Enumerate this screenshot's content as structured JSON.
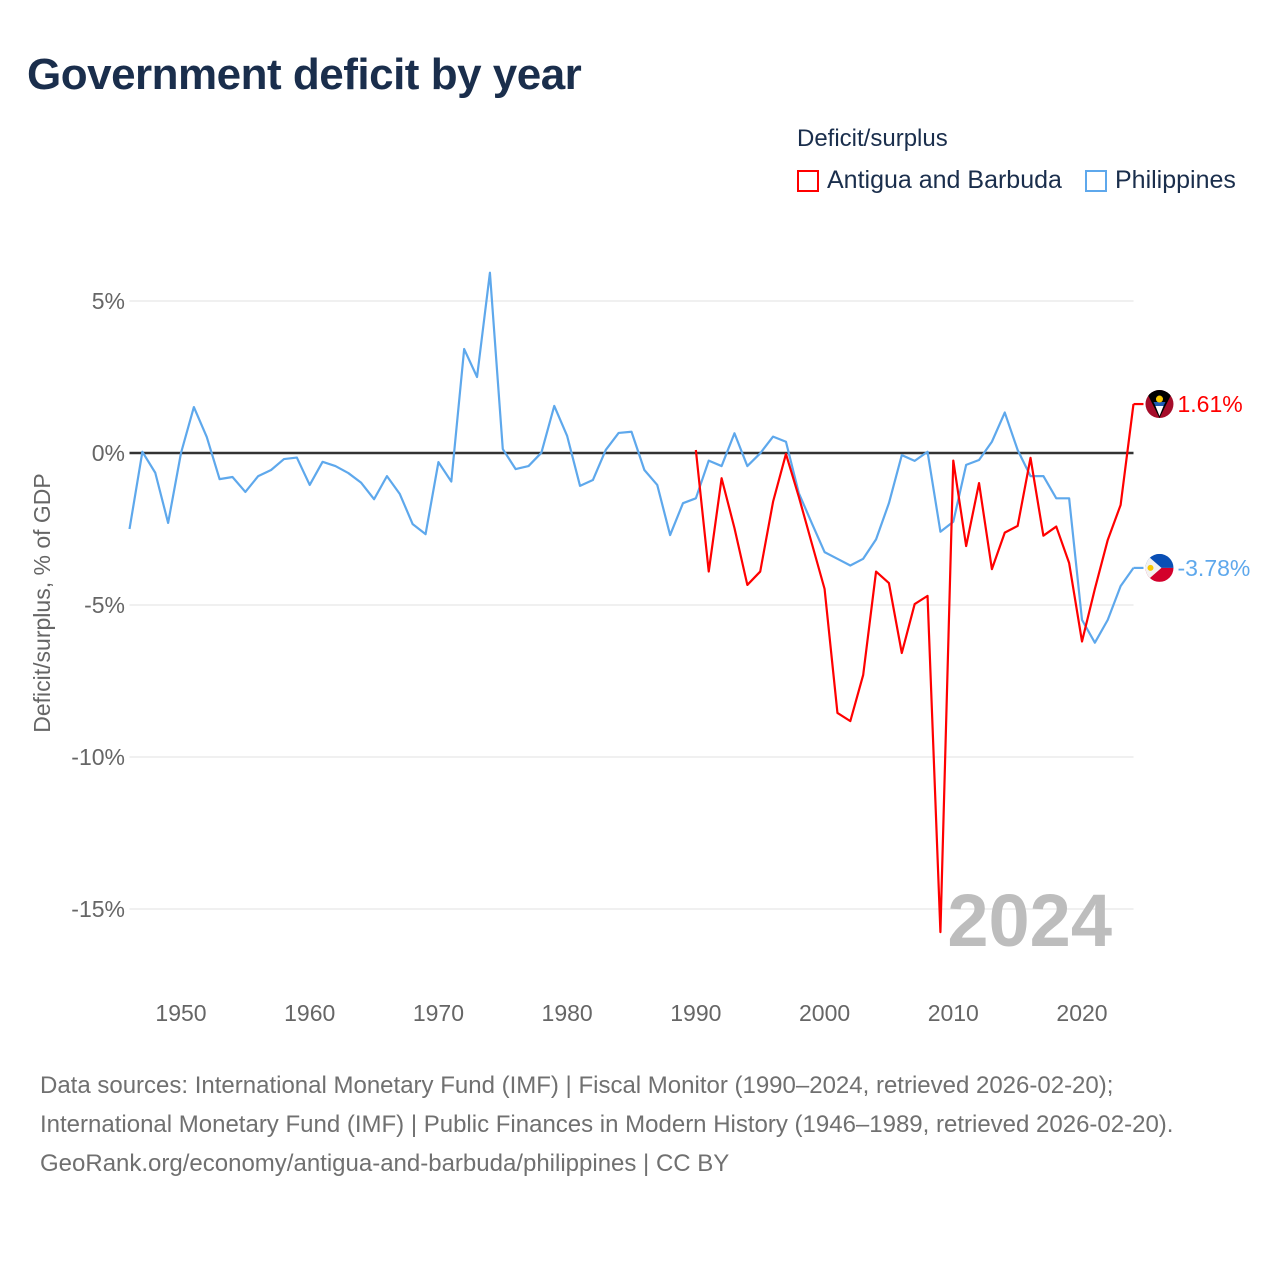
{
  "title": "Government deficit by year",
  "legend_title": "Deficit/surplus",
  "watermark_year": "2024",
  "source_lines": [
    "Data sources: International Monetary Fund (IMF) | Fiscal Monitor (1990–2024, retrieved 2026-02-20); International Monetary Fund (IMF) | Public Finances in Modern History (1946–1989, retrieved 2026-02-20).",
    "GeoRank.org/economy/antigua-and-barbuda/philippines | CC BY"
  ],
  "chart_data": {
    "type": "line",
    "title": "Government deficit by year",
    "xlabel": "",
    "ylabel": "Deficit/surplus, % of GDP",
    "xlim": [
      1946,
      2024
    ],
    "ylim": [
      -17,
      6
    ],
    "x_ticks": [
      1950,
      1960,
      1970,
      1980,
      1990,
      2000,
      2010,
      2020
    ],
    "y_ticks": [
      5,
      0,
      -5,
      -10,
      -15
    ],
    "y_tick_labels": [
      "5%",
      "0%",
      "-5%",
      "-10%",
      "-15%"
    ],
    "legend_position": "top-right",
    "series": [
      {
        "name": "Antigua and Barbuda",
        "color": "#ff0000",
        "end_label": "1.61%",
        "start_year": 1990,
        "values": [
          0.1,
          -3.9,
          -0.83,
          -2.47,
          -4.34,
          -3.9,
          -1.6,
          -0.03,
          -1.44,
          -2.96,
          -4.47,
          -8.55,
          -8.82,
          -7.3,
          -3.9,
          -4.28,
          -6.58,
          -4.97,
          -4.7,
          -15.76,
          -0.25,
          -3.06,
          -0.99,
          -3.82,
          -2.62,
          -2.4,
          -0.16,
          -2.72,
          -2.42,
          -3.62,
          -6.2,
          -4.47,
          -2.86,
          -1.71,
          1.61
        ]
      },
      {
        "name": "Philippines",
        "color": "#5ea8ec",
        "end_label": "-3.78%",
        "start_year": 1946,
        "values": [
          -2.5,
          0.04,
          -0.65,
          -2.3,
          0,
          1.51,
          0.53,
          -0.86,
          -0.79,
          -1.28,
          -0.76,
          -0.56,
          -0.2,
          -0.15,
          -1.05,
          -0.29,
          -0.43,
          -0.66,
          -0.98,
          -1.52,
          -0.76,
          -1.35,
          -2.34,
          -2.67,
          -0.3,
          -0.94,
          3.42,
          2.5,
          5.93,
          0.13,
          -0.53,
          -0.43,
          0.01,
          1.55,
          0.56,
          -1.08,
          -0.89,
          0.1,
          0.66,
          0.7,
          -0.56,
          -1.05,
          -2.7,
          -1.65,
          -1.49,
          -0.25,
          -0.43,
          0.65,
          -0.43,
          -0.01,
          0.54,
          0.37,
          -1.32,
          -2.3,
          -3.26,
          -3.48,
          -3.7,
          -3.48,
          -2.84,
          -1.65,
          -0.07,
          -0.26,
          0.04,
          -2.59,
          -2.26,
          -0.39,
          -0.23,
          0.37,
          1.33,
          0.1,
          -0.76,
          -0.76,
          -1.49,
          -1.49,
          -5.49,
          -6.24,
          -5.49,
          -4.38,
          -3.78
        ]
      }
    ]
  }
}
